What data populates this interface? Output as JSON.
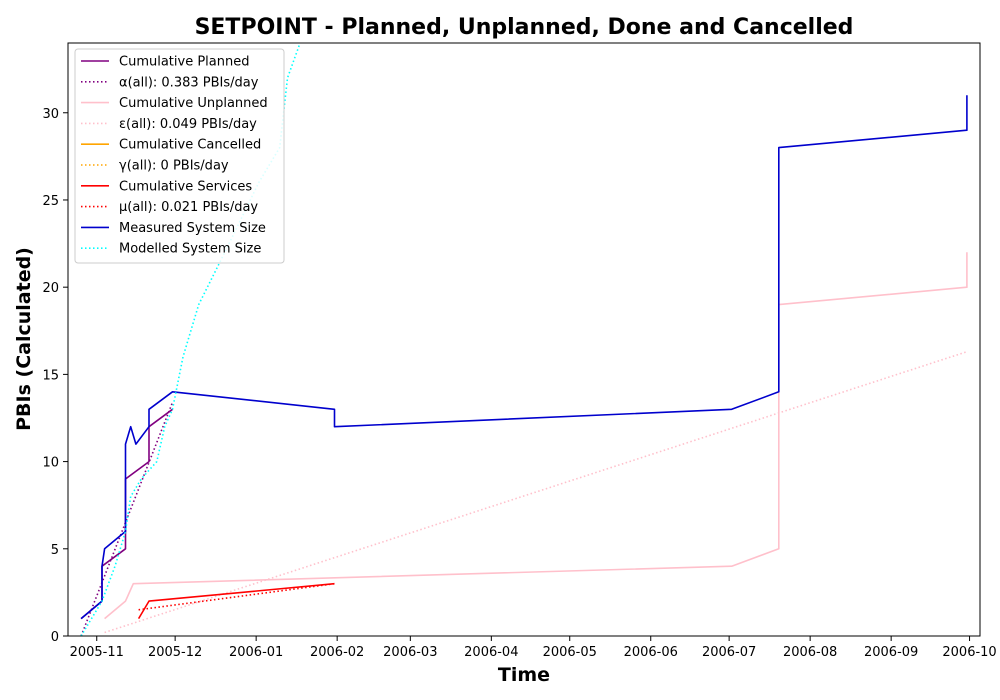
{
  "chart_data": {
    "type": "line",
    "title": "SETPOINT - Planned, Unplanned, Done  and Cancelled",
    "xlabel": "Time",
    "ylabel": "PBIs (Calculated)",
    "xlim": [
      "2005-10-21",
      "2006-10-05"
    ],
    "ylim": [
      0,
      34
    ],
    "x_ticks": [
      "2005-11",
      "2005-12",
      "2006-01",
      "2006-02",
      "2006-03",
      "2006-04",
      "2006-05",
      "2006-06",
      "2006-07",
      "2006-08",
      "2006-09",
      "2006-10"
    ],
    "y_ticks": [
      0,
      5,
      10,
      15,
      20,
      25,
      30
    ],
    "grid": false,
    "legend_position": "top-left",
    "series": [
      {
        "name": "Cumulative Planned",
        "color": "#800080",
        "style": "solid",
        "points": [
          [
            "2005-10-26",
            1
          ],
          [
            "2005-11-03",
            2
          ],
          [
            "2005-11-03",
            4
          ],
          [
            "2005-11-12",
            5
          ],
          [
            "2005-11-12",
            9
          ],
          [
            "2005-11-21",
            10
          ],
          [
            "2005-11-21",
            12
          ],
          [
            "2005-11-30",
            13
          ]
        ]
      },
      {
        "name": "α(all): 0.383 PBIs/day",
        "color": "#800080",
        "style": "dotted",
        "points": [
          [
            "2005-10-26",
            0
          ],
          [
            "2005-11-30",
            13.4
          ]
        ]
      },
      {
        "name": "Cumulative Unplanned",
        "color": "#ffc0cb",
        "style": "solid",
        "points": [
          [
            "2005-11-04",
            1
          ],
          [
            "2005-11-12",
            2
          ],
          [
            "2005-11-15",
            3
          ],
          [
            "2006-07-02",
            4
          ],
          [
            "2006-07-20",
            5
          ],
          [
            "2006-07-20",
            19
          ],
          [
            "2006-09-30",
            20
          ],
          [
            "2006-09-30",
            22
          ]
        ]
      },
      {
        "name": "ε(all): 0.049 PBIs/day",
        "color": "#ffc0cb",
        "style": "dotted",
        "points": [
          [
            "2005-11-04",
            0.2
          ],
          [
            "2006-09-30",
            16.3
          ]
        ]
      },
      {
        "name": "Cumulative Cancelled",
        "color": "#ffa500",
        "style": "solid",
        "points": []
      },
      {
        "name": "γ(all): 0 PBIs/day",
        "color": "#ffa500",
        "style": "dotted",
        "points": []
      },
      {
        "name": "Cumulative Services",
        "color": "#ff0000",
        "style": "solid",
        "points": [
          [
            "2005-11-17",
            1
          ],
          [
            "2005-11-21",
            2
          ],
          [
            "2006-01-31",
            3
          ]
        ]
      },
      {
        "name": "μ(all): 0.021 PBIs/day",
        "color": "#ff0000",
        "style": "dotted",
        "points": [
          [
            "2005-11-17",
            1.5
          ],
          [
            "2006-01-31",
            3
          ]
        ]
      },
      {
        "name": "Measured System Size",
        "color": "#0000cd",
        "style": "solid",
        "points": [
          [
            "2005-10-26",
            1
          ],
          [
            "2005-11-03",
            2
          ],
          [
            "2005-11-03",
            4
          ],
          [
            "2005-11-04",
            5
          ],
          [
            "2005-11-12",
            6
          ],
          [
            "2005-11-12",
            11
          ],
          [
            "2005-11-14",
            12
          ],
          [
            "2005-11-16",
            11
          ],
          [
            "2005-11-21",
            12
          ],
          [
            "2005-11-21",
            13
          ],
          [
            "2005-11-30",
            14
          ],
          [
            "2006-01-31",
            13
          ],
          [
            "2006-01-31",
            12
          ],
          [
            "2006-07-02",
            13
          ],
          [
            "2006-07-20",
            14
          ],
          [
            "2006-07-20",
            28
          ],
          [
            "2006-09-30",
            29
          ],
          [
            "2006-09-30",
            31
          ]
        ]
      },
      {
        "name": "Modelled System Size",
        "color": "#00ffff",
        "style": "dotted",
        "points": [
          [
            "2005-10-26",
            0
          ],
          [
            "2005-11-03",
            2
          ],
          [
            "2005-11-08",
            4
          ],
          [
            "2005-11-12",
            6
          ],
          [
            "2005-11-14",
            8
          ],
          [
            "2005-11-18",
            9
          ],
          [
            "2005-11-24",
            10
          ],
          [
            "2005-11-27",
            12
          ],
          [
            "2005-11-30",
            13
          ],
          [
            "2005-12-04",
            16
          ],
          [
            "2005-12-10",
            19
          ],
          [
            "2005-12-20",
            22
          ],
          [
            "2006-01-02",
            26
          ],
          [
            "2006-01-10",
            28
          ],
          [
            "2006-01-13",
            32
          ],
          [
            "2006-01-19",
            34.5
          ]
        ]
      }
    ]
  }
}
